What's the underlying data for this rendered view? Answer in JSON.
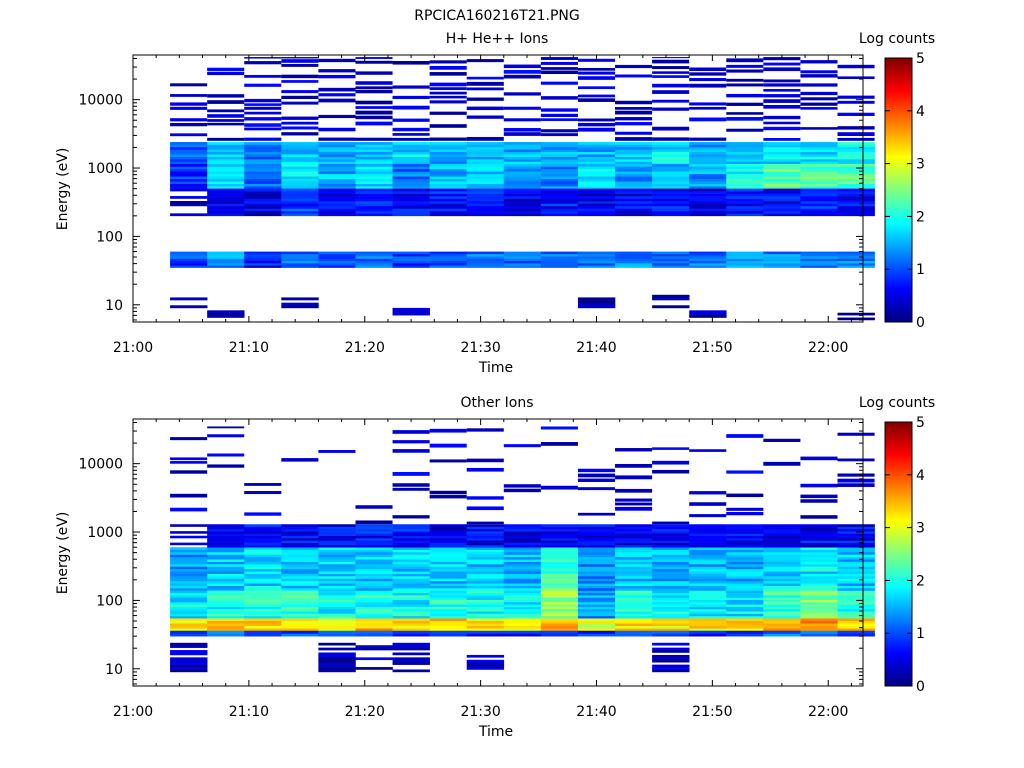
{
  "figure": {
    "title": "RPCICA160216T21.PNG"
  },
  "chart_data": [
    {
      "type": "heatmap",
      "title": "H+ He++ Ions",
      "xlabel": "Time",
      "ylabel": "Energy (eV)",
      "x_tick_labels": [
        "21:00",
        "21:10",
        "21:20",
        "21:30",
        "21:40",
        "21:50",
        "22:00"
      ],
      "y_tick_labels": [
        "10",
        "100",
        "1000",
        "10000"
      ],
      "y_scale": "log",
      "ylim": [
        5.6,
        45000
      ],
      "xlim_minutes": [
        0,
        63
      ],
      "colorbar": {
        "label": "Log counts",
        "ticks": [
          "0",
          "1",
          "2",
          "3",
          "4",
          "5"
        ],
        "range": [
          0,
          5
        ],
        "colormap": "jet"
      },
      "time_bins_min": [
        3.2,
        6.4,
        9.6,
        12.8,
        16.0,
        19.2,
        22.4,
        25.6,
        28.8,
        32.0,
        35.2,
        38.4,
        41.6,
        44.8,
        48.0,
        51.2,
        54.4,
        57.6,
        60.8
      ],
      "bands": [
        {
          "e_min": 1150,
          "e_max": 2400,
          "levels": [
            1.0,
            1.6,
            1.2,
            1.6,
            1.4,
            1.6,
            1.7,
            1.5,
            1.6,
            1.5,
            1.4,
            1.5,
            1.6,
            1.8,
            1.4,
            1.6,
            1.7,
            1.8,
            1.9
          ]
        },
        {
          "e_min": 500,
          "e_max": 1150,
          "levels": [
            0.8,
            1.7,
            1.2,
            1.7,
            1.5,
            1.6,
            1.2,
            1.5,
            1.6,
            1.5,
            1.3,
            1.8,
            1.3,
            1.6,
            1.4,
            1.9,
            2.3,
            2.2,
            2.3
          ]
        },
        {
          "e_min": 200,
          "e_max": 500,
          "levels": [
            0.4,
            0.6,
            0.5,
            0.9,
            0.6,
            0.7,
            0.6,
            0.7,
            0.7,
            0.5,
            0.7,
            0.6,
            0.6,
            0.7,
            0.5,
            0.7,
            0.6,
            0.8,
            0.6
          ]
        },
        {
          "e_min": 35,
          "e_max": 60,
          "levels": [
            0.9,
            1.3,
            0.7,
            1.1,
            0.9,
            1.1,
            0.9,
            1.1,
            1.2,
            1.1,
            1.2,
            1.1,
            1.3,
            1.1,
            1.2,
            1.3,
            1.3,
            1.4,
            1.3
          ]
        },
        {
          "e_min": 9,
          "e_max": 14,
          "levels": [
            0.3,
            0,
            0,
            0.3,
            0,
            0,
            0,
            0,
            0,
            0,
            0,
            0.3,
            0,
            0.3,
            0,
            0,
            0,
            0,
            0
          ]
        },
        {
          "e_min": 6,
          "e_max": 9,
          "levels": [
            0,
            0.3,
            0,
            0,
            0,
            0,
            0.3,
            0,
            0,
            0,
            0,
            0.3,
            0,
            0,
            0.3,
            0,
            0,
            0,
            0.3
          ]
        },
        {
          "e_min": 2500,
          "e_max": 42000,
          "levels": [
            0.25,
            0.3,
            0.3,
            0.3,
            0.3,
            0.3,
            0.3,
            0.3,
            0.3,
            0.3,
            0.3,
            0.3,
            0.3,
            0.3,
            0.3,
            0.3,
            0.3,
            0.3,
            0.3
          ]
        }
      ]
    },
    {
      "type": "heatmap",
      "title": "Other Ions",
      "xlabel": "Time",
      "ylabel": "Energy (eV)",
      "x_tick_labels": [
        "21:00",
        "21:10",
        "21:20",
        "21:30",
        "21:40",
        "21:50",
        "22:00"
      ],
      "y_tick_labels": [
        "10",
        "100",
        "1000",
        "10000"
      ],
      "y_scale": "log",
      "ylim": [
        5.6,
        45000
      ],
      "xlim_minutes": [
        0,
        63
      ],
      "colorbar": {
        "label": "Log counts",
        "ticks": [
          "0",
          "1",
          "2",
          "3",
          "4",
          "5"
        ],
        "range": [
          0,
          5
        ],
        "colormap": "jet"
      },
      "time_bins_min": [
        3.2,
        6.4,
        9.6,
        12.8,
        16.0,
        19.2,
        22.4,
        25.6,
        28.8,
        32.0,
        35.2,
        38.4,
        41.6,
        44.8,
        48.0,
        51.2,
        54.4,
        57.6,
        60.8
      ],
      "bands": [
        {
          "e_min": 36,
          "e_max": 55,
          "levels": [
            3.2,
            3.5,
            3.4,
            3.3,
            3.2,
            3.5,
            3.3,
            3.4,
            3.3,
            3.2,
            3.4,
            3.0,
            3.3,
            3.2,
            3.2,
            3.3,
            3.4,
            3.8,
            3.4
          ]
        },
        {
          "e_min": 55,
          "e_max": 140,
          "levels": [
            1.8,
            2.0,
            2.0,
            2.1,
            1.9,
            2.0,
            1.9,
            2.0,
            1.9,
            1.8,
            2.6,
            1.4,
            2.0,
            1.9,
            1.8,
            1.8,
            2.1,
            2.5,
            2.0
          ]
        },
        {
          "e_min": 140,
          "e_max": 600,
          "levels": [
            1.4,
            1.6,
            1.7,
            1.6,
            1.6,
            1.6,
            1.6,
            1.6,
            1.6,
            1.5,
            2.2,
            1.3,
            1.6,
            1.5,
            1.5,
            1.5,
            1.7,
            1.8,
            1.6
          ]
        },
        {
          "e_min": 600,
          "e_max": 1300,
          "levels": [
            0.4,
            0.6,
            0.7,
            0.6,
            0.6,
            0.7,
            0.7,
            0.5,
            0.6,
            0.5,
            0.5,
            0.6,
            0.5,
            0.6,
            0.5,
            0.6,
            0.5,
            0.6,
            0.6
          ]
        },
        {
          "e_min": 30,
          "e_max": 36,
          "levels": [
            1.0,
            1.3,
            1.2,
            1.1,
            1.0,
            1.1,
            0.9,
            1.0,
            0.8,
            0.8,
            1.0,
            1.0,
            1.1,
            0.9,
            0.9,
            1.0,
            1.1,
            1.0,
            1.0
          ]
        },
        {
          "e_min": 9,
          "e_max": 24,
          "levels": [
            0.3,
            0,
            0,
            0,
            0.3,
            0.3,
            0.3,
            0,
            0.3,
            0,
            0,
            0,
            0,
            0.3,
            0,
            0,
            0,
            0,
            0
          ]
        },
        {
          "e_min": 1300,
          "e_max": 35000,
          "levels": [
            0.25,
            0.3,
            0.3,
            0.3,
            0.3,
            0.3,
            0.3,
            0.3,
            0.3,
            0.3,
            0.3,
            0.3,
            0.3,
            0.3,
            0.3,
            0.3,
            0.3,
            0.3,
            0.3
          ]
        }
      ]
    }
  ]
}
